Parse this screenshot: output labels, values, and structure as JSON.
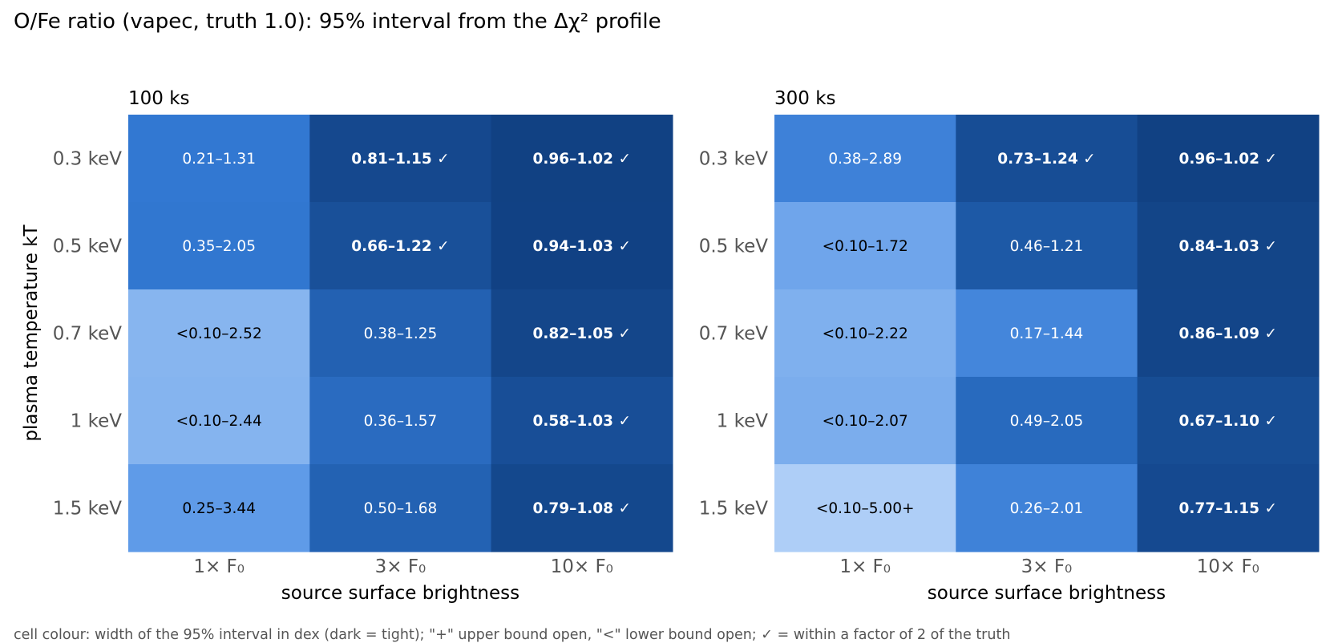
{
  "title": "O/Fe ratio (vapec, truth 1.0): 95% interval from the Δχ² profile",
  "footnote": "cell colour: width of the 95% interval in dex (dark = tight); \"+\" upper bound open, \"<\" lower bound open; ✓ = within a factor of 2 of the truth",
  "chart_data": [
    {
      "type": "heatmap",
      "title": "100 ks",
      "xlabel": "source surface brightness",
      "ylabel": "plasma temperature kT",
      "x_categories": [
        "1× F₀",
        "3× F₀",
        "10× F₀"
      ],
      "y_categories": [
        "0.3 keV",
        "0.5 keV",
        "0.7 keV",
        "1 keV",
        "1.5 keV"
      ],
      "cells": [
        [
          "0.21–1.31",
          "0.81–1.15 ✓",
          "0.96–1.02 ✓"
        ],
        [
          "0.35–2.05",
          "0.66–1.22 ✓",
          "0.94–1.03 ✓"
        ],
        [
          "<0.10–2.52",
          "0.38–1.25",
          "0.82–1.05 ✓"
        ],
        [
          "<0.10–2.44",
          "0.36–1.57",
          "0.58–1.03 ✓"
        ],
        [
          "0.25–3.44",
          "0.50–1.68",
          "0.79–1.08 ✓"
        ]
      ],
      "width_dex": [
        [
          0.79,
          0.15,
          0.03
        ],
        [
          0.77,
          0.27,
          0.04
        ],
        [
          1.4,
          0.52,
          0.11
        ],
        [
          1.39,
          0.64,
          0.25
        ],
        [
          1.14,
          0.53,
          0.14
        ]
      ]
    },
    {
      "type": "heatmap",
      "title": "300 ks",
      "xlabel": "source surface brightness",
      "ylabel": "",
      "x_categories": [
        "1× F₀",
        "3× F₀",
        "10× F₀"
      ],
      "y_categories": [
        "0.3 keV",
        "0.5 keV",
        "0.7 keV",
        "1 keV",
        "1.5 keV"
      ],
      "cells": [
        [
          "0.38–2.89",
          "0.73–1.24 ✓",
          "0.96–1.02 ✓"
        ],
        [
          "<0.10–1.72",
          "0.46–1.21",
          "0.84–1.03 ✓"
        ],
        [
          "<0.10–2.22",
          "0.17–1.44",
          "0.86–1.09 ✓"
        ],
        [
          "<0.10–2.07",
          "0.49–2.05",
          "0.67–1.10 ✓"
        ],
        [
          "<0.10–5.00+",
          "0.26–2.01",
          "0.77–1.15 ✓"
        ]
      ],
      "width_dex": [
        [
          0.88,
          0.23,
          0.03
        ],
        [
          1.24,
          0.42,
          0.09
        ],
        [
          1.35,
          0.93,
          0.1
        ],
        [
          1.32,
          0.62,
          0.22
        ],
        [
          1.7,
          0.89,
          0.17
        ]
      ]
    }
  ]
}
